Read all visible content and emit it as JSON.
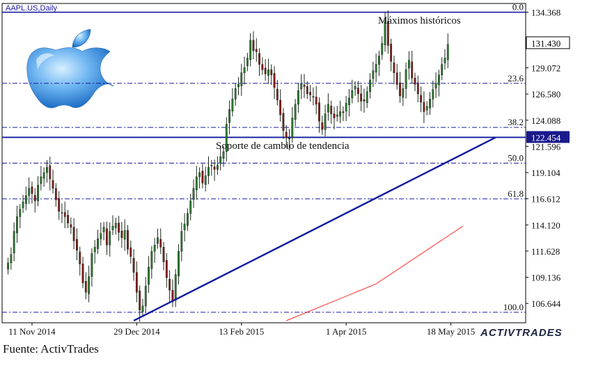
{
  "chart_data": {
    "type": "candlestick",
    "symbol": "AAPL.US,Daily",
    "y_range": [
      104.8,
      135.2
    ],
    "x_range": [
      0,
      175
    ],
    "price_ticks": [
      "106.644",
      "109.136",
      "111.628",
      "114.120",
      "116.612",
      "119.104",
      "121.596",
      "124.088",
      "126.580",
      "129.072",
      "131.430",
      "134.368"
    ],
    "date_ticks": [
      {
        "i": 10,
        "label": "11 Nov 2014"
      },
      {
        "i": 45,
        "label": "29 Dec 2014"
      },
      {
        "i": 80,
        "label": "13 Feb 2015"
      },
      {
        "i": 115,
        "label": "1 Apr 2015"
      },
      {
        "i": 150,
        "label": "18 May 2015"
      }
    ],
    "fib_levels": [
      {
        "label": "0.0",
        "price": 134.368
      },
      {
        "label": "23.6",
        "price": 127.6
      },
      {
        "label": "38.2",
        "price": 123.4
      },
      {
        "label": "50.0",
        "price": 120.0
      },
      {
        "label": "61.8",
        "price": 116.6
      },
      {
        "label": "100.0",
        "price": 105.8
      }
    ],
    "current_price": {
      "value": "131.430",
      "price": 131.43
    },
    "support_price": {
      "value": "122.454",
      "price": 122.454
    },
    "trendline": [
      {
        "i": 44,
        "price": 105.0
      },
      {
        "i": 165,
        "price": 122.454
      }
    ],
    "moving_average": [
      {
        "i": 95,
        "price": 105.0
      },
      {
        "i": 125,
        "price": 108.5
      },
      {
        "i": 154,
        "price": 114.0
      }
    ],
    "annotations": {
      "highs": "Máximos históricos",
      "support": "Soporte de cambio de tendencia"
    },
    "closes": [
      110.5,
      111.3,
      113.5,
      114.9,
      115.6,
      116.3,
      116.9,
      117.6,
      117.1,
      116.4,
      117.9,
      118.7,
      119.1,
      119.6,
      118.5,
      117.6,
      116.5,
      115.4,
      115.3,
      114.9,
      114.3,
      113.9,
      112.6,
      111.7,
      110.4,
      108.6,
      107.7,
      109.2,
      111.4,
      112.0,
      112.8,
      113.3,
      113.9,
      112.2,
      113.5,
      114.0,
      114.3,
      113.4,
      112.9,
      113.6,
      111.8,
      111.1,
      109.6,
      107.7,
      106.0,
      106.4,
      108.3,
      110.1,
      111.6,
      112.2,
      112.9,
      112.0,
      110.6,
      109.1,
      107.9,
      106.8,
      109.4,
      111.6,
      113.5,
      114.2,
      115.2,
      116.4,
      117.6,
      118.7,
      119.1,
      118.1,
      118.8,
      119.6,
      119.8,
      119.4,
      119.8,
      120.6,
      121.1,
      123.7,
      125.1,
      126.1,
      127.1,
      127.5,
      128.6,
      129.1,
      130.0,
      131.7,
      130.7,
      130.6,
      129.4,
      128.9,
      128.5,
      128.9,
      128.4,
      127.2,
      126.0,
      124.6,
      123.1,
      122.4,
      122.3,
      124.3,
      125.6,
      126.9,
      127.6,
      127.3,
      126.6,
      126.5,
      126.3,
      125.6,
      124.0,
      123.2,
      124.7,
      125.6,
      124.7,
      124.3,
      124.6,
      124.9,
      124.8,
      125.7,
      126.2,
      126.9,
      127.3,
      126.6,
      125.9,
      125.9,
      126.8,
      127.9,
      128.8,
      129.4,
      130.2,
      131.4,
      133.5,
      131.2,
      129.7,
      128.6,
      127.5,
      126.4,
      127.1,
      128.9,
      129.8,
      128.1,
      127.5,
      126.6,
      125.8,
      124.9,
      125.4,
      126.1,
      127.0,
      127.6,
      128.4,
      129.4,
      130.0,
      131.3
    ]
  },
  "legend": {
    "fib_labels": [
      "0.0",
      "23.6",
      "38.2",
      "50.0",
      "61.8",
      "100.0"
    ]
  },
  "colors": {
    "bull": "#2e7d32",
    "bear": "#8b1a1a",
    "fib": "#1a1aa0",
    "trend": "#0f1a9e",
    "ma": "#ff2b2b",
    "price_box": "#000000",
    "support_box": "#1a1a8c"
  },
  "brand": "ACTIVTRADES",
  "source": "Fuente: ActivTrades"
}
